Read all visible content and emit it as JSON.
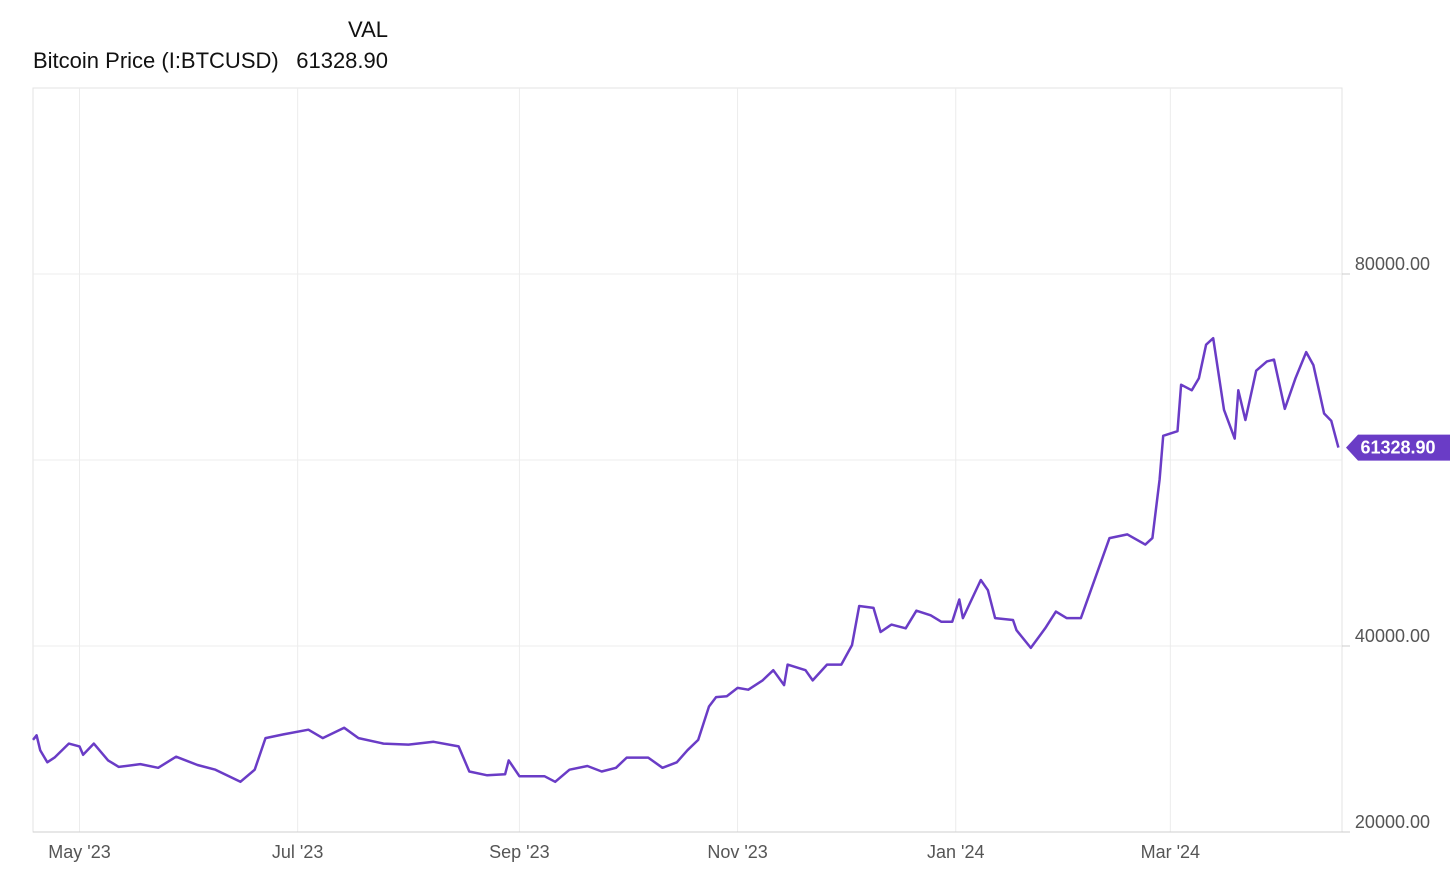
{
  "chart_data": {
    "type": "line",
    "legend_header": "VAL",
    "series": [
      {
        "name": "Bitcoin Price (I:BTCUSD)",
        "color": "#6a3cc6",
        "x": [
          "2023-04-18",
          "2023-04-19",
          "2023-04-20",
          "2023-04-22",
          "2023-04-24",
          "2023-04-28",
          "2023-05-01",
          "2023-05-02",
          "2023-05-05",
          "2023-05-09",
          "2023-05-12",
          "2023-05-18",
          "2023-05-23",
          "2023-05-28",
          "2023-06-03",
          "2023-06-08",
          "2023-06-15",
          "2023-06-19",
          "2023-06-22",
          "2023-06-27",
          "2023-07-04",
          "2023-07-08",
          "2023-07-14",
          "2023-07-18",
          "2023-07-25",
          "2023-08-01",
          "2023-08-08",
          "2023-08-15",
          "2023-08-18",
          "2023-08-23",
          "2023-08-28",
          "2023-08-29",
          "2023-09-01",
          "2023-09-08",
          "2023-09-11",
          "2023-09-15",
          "2023-09-20",
          "2023-09-24",
          "2023-09-28",
          "2023-10-01",
          "2023-10-07",
          "2023-10-11",
          "2023-10-15",
          "2023-10-18",
          "2023-10-21",
          "2023-10-24",
          "2023-10-26",
          "2023-10-29",
          "2023-11-01",
          "2023-11-04",
          "2023-11-08",
          "2023-11-11",
          "2023-11-14",
          "2023-11-15",
          "2023-11-20",
          "2023-11-22",
          "2023-11-26",
          "2023-11-30",
          "2023-12-03",
          "2023-12-05",
          "2023-12-09",
          "2023-12-11",
          "2023-12-14",
          "2023-12-18",
          "2023-12-21",
          "2023-12-25",
          "2023-12-28",
          "2023-12-31",
          "2024-01-02",
          "2024-01-03",
          "2024-01-08",
          "2024-01-10",
          "2024-01-12",
          "2024-01-17",
          "2024-01-18",
          "2024-01-22",
          "2024-01-26",
          "2024-01-29",
          "2024-02-01",
          "2024-02-05",
          "2024-02-09",
          "2024-02-13",
          "2024-02-18",
          "2024-02-23",
          "2024-02-25",
          "2024-02-27",
          "2024-02-28",
          "2024-03-03",
          "2024-03-04",
          "2024-03-07",
          "2024-03-09",
          "2024-03-11",
          "2024-03-13",
          "2024-03-16",
          "2024-03-19",
          "2024-03-20",
          "2024-03-22",
          "2024-03-25",
          "2024-03-28",
          "2024-03-30",
          "2024-04-02",
          "2024-04-05",
          "2024-04-08",
          "2024-04-10",
          "2024-04-13",
          "2024-04-15",
          "2024-04-17"
        ],
        "values": [
          29900,
          30400,
          28800,
          27500,
          28000,
          29500,
          29200,
          28300,
          29500,
          27700,
          27000,
          27300,
          26900,
          28100,
          27200,
          26700,
          25400,
          26700,
          30100,
          30500,
          31000,
          30100,
          31200,
          30100,
          29500,
          29400,
          29700,
          29200,
          26500,
          26100,
          26200,
          27700,
          26000,
          26000,
          25400,
          26700,
          27100,
          26500,
          26900,
          28000,
          28000,
          26900,
          27500,
          28800,
          29900,
          33500,
          34500,
          34600,
          35500,
          35300,
          36300,
          37400,
          35800,
          38000,
          37400,
          36300,
          38000,
          38000,
          40100,
          44300,
          44100,
          41500,
          42300,
          41900,
          43800,
          43300,
          42600,
          42600,
          45000,
          43000,
          47100,
          46000,
          43000,
          42800,
          41700,
          39800,
          41900,
          43700,
          43000,
          43000,
          47300,
          51600,
          52000,
          50900,
          51600,
          57900,
          62600,
          63100,
          68100,
          67500,
          68800,
          72400,
          73100,
          65400,
          62300,
          67500,
          64300,
          69600,
          70600,
          70800,
          65500,
          68800,
          71600,
          70200,
          65000,
          64200,
          61328.9
        ],
        "last_value_label": "61328.90"
      }
    ],
    "xlim": [
      "2023-04-18",
      "2024-04-18"
    ],
    "xticks": [
      {
        "value": "2023-05-01",
        "label": "May '23"
      },
      {
        "value": "2023-07-01",
        "label": "Jul '23"
      },
      {
        "value": "2023-09-01",
        "label": "Sep '23"
      },
      {
        "value": "2023-11-01",
        "label": "Nov '23"
      },
      {
        "value": "2024-01-01",
        "label": "Jan '24"
      },
      {
        "value": "2024-03-01",
        "label": "Mar '24"
      }
    ],
    "ylim": [
      20000,
      100000
    ],
    "yticks": [
      {
        "value": 20000,
        "label": "20000.00"
      },
      {
        "value": 40000,
        "label": "40000.00"
      },
      {
        "value": 80000,
        "label": "80000.00"
      }
    ],
    "grid_values": [
      40000,
      60000,
      80000
    ],
    "grid": true
  }
}
